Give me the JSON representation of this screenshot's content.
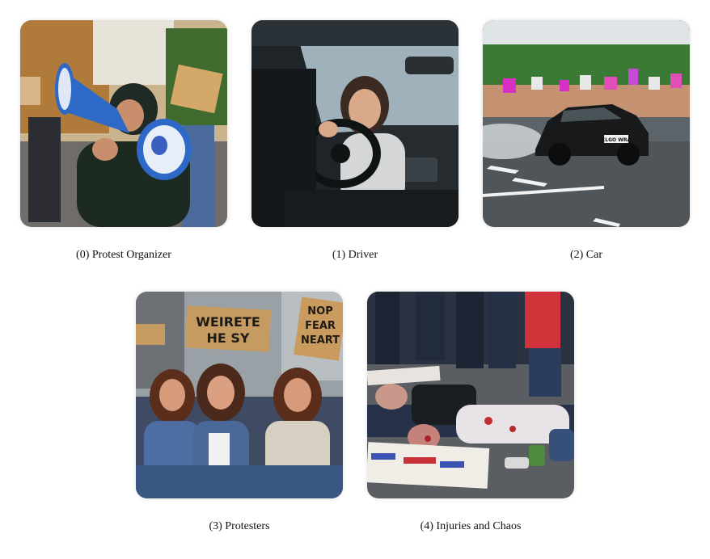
{
  "panels": [
    {
      "caption": "(0) Protest Organizer",
      "icon": "megaphone-icon"
    },
    {
      "caption": "(1) Driver",
      "icon": "steering-wheel-icon"
    },
    {
      "caption": "(2) Car",
      "icon": "car-icon",
      "plate_text": "CLGO WRA"
    },
    {
      "caption": "(3) Protesters",
      "icon": "protest-sign-icon",
      "sign_left": [
        "WEIRETE",
        "HE SY"
      ],
      "sign_right": [
        "NOP",
        "FEAR",
        "NEART"
      ]
    },
    {
      "caption": "(4) Injuries and Chaos",
      "icon": "injury-icon"
    }
  ],
  "colors": {
    "caption_text": "#111111",
    "background": "#ffffff"
  }
}
